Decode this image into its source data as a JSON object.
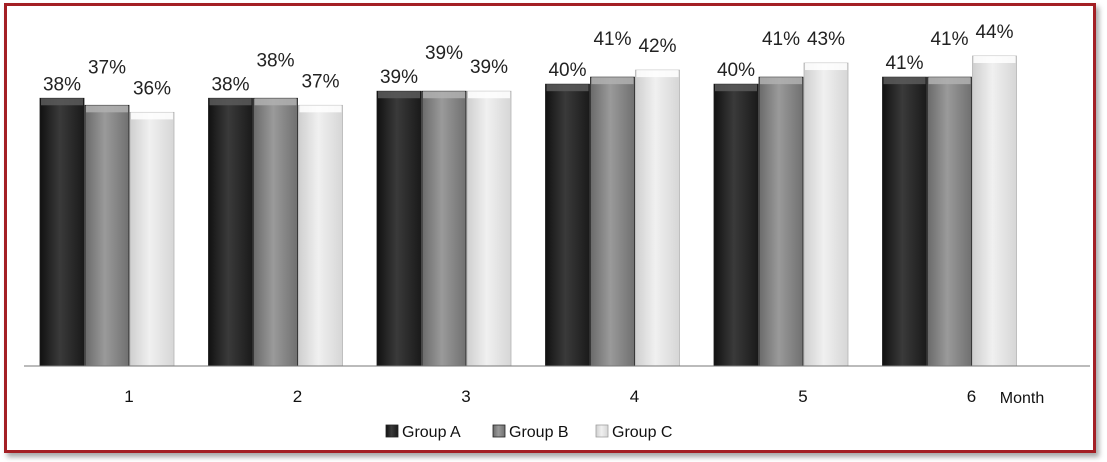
{
  "chart_data": {
    "type": "bar",
    "title": "",
    "xlabel": "Month",
    "ylabel": "",
    "categories": [
      "1",
      "2",
      "3",
      "4",
      "5",
      "6"
    ],
    "series": [
      {
        "name": "Group A",
        "values": [
          38,
          38,
          39,
          40,
          40,
          41
        ],
        "labels": [
          "38%",
          "38%",
          "39%",
          "40%",
          "40%",
          "41%"
        ],
        "color": "#2b2b2b"
      },
      {
        "name": "Group B",
        "values": [
          37,
          38,
          39,
          41,
          41,
          41
        ],
        "labels": [
          "37%",
          "38%",
          "39%",
          "41%",
          "41%",
          "41%"
        ],
        "color": "#8a8a8a"
      },
      {
        "name": "Group C",
        "values": [
          36,
          37,
          39,
          42,
          43,
          44
        ],
        "labels": [
          "36%",
          "37%",
          "39%",
          "42%",
          "43%",
          "44%"
        ],
        "color": "#e6e6e6"
      }
    ],
    "ylim": [
      0,
      56
    ],
    "grid": false,
    "legend": "bottom"
  }
}
